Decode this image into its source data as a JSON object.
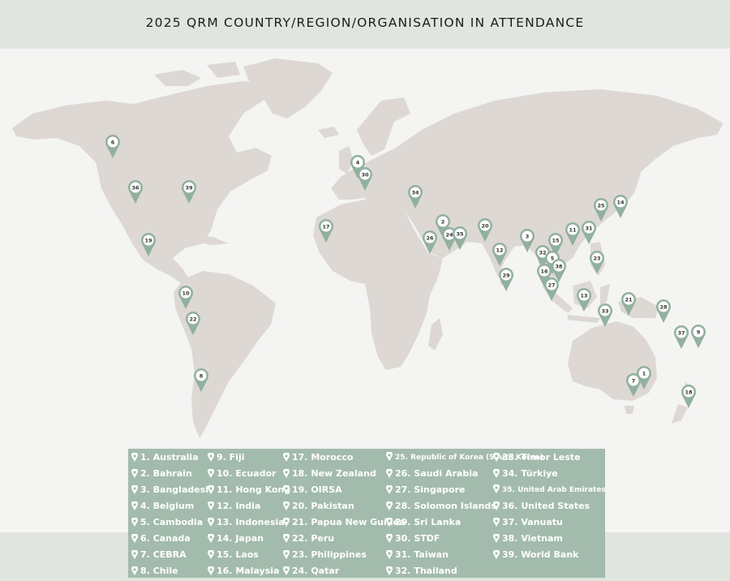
{
  "title": "2025 QRM COUNTRY/REGION/ORGANISATION IN ATTENDANCE",
  "colors": {
    "land": "#ddd8d3",
    "pin": "#92b09f",
    "legend_bg": "#a3bbad",
    "header_bg": "#e0e5e0",
    "background": "#f4f4f3"
  },
  "markers": [
    "6",
    "36",
    "39",
    "19",
    "10",
    "22",
    "8",
    "17",
    "4",
    "30",
    "34",
    "2",
    "26",
    "24",
    "35",
    "20",
    "12",
    "3",
    "29",
    "15",
    "11",
    "31",
    "25",
    "14",
    "32",
    "5",
    "16",
    "38",
    "27",
    "23",
    "13",
    "21",
    "33",
    "28",
    "37",
    "9",
    "7",
    "1",
    "18"
  ],
  "legend": [
    "1. Australia",
    "2. Bahrain",
    "3. Bangladesh",
    "4. Belgium",
    "5. Cambodia",
    "6. Canada",
    "7. CEBRA",
    "8. Chile",
    "9. Fiji",
    "10. Ecuador",
    "11. Hong Kong",
    "12. India",
    "13. Indonesia",
    "14. Japan",
    "15. Laos",
    "16. Malaysia",
    "17. Morocco",
    "18. New Zealand",
    "19. OIRSA",
    "20. Pakistan",
    "21. Papua New Guinea",
    "22. Peru",
    "23. Philippines",
    "24. Qatar",
    "25. Republic of Korea (South Korea)",
    "26. Saudi Arabia",
    "27. Singapore",
    "28. Solomon Islands",
    "29. Sri Lanka",
    "30. STDF",
    "31. Taiwan",
    "32. Thailand",
    "33. Timor Leste",
    "34. Türkiye",
    "35. United Arab Emirates",
    "36. United States",
    "37. Vanuatu",
    "38. Vietnam",
    "39. World Bank"
  ]
}
